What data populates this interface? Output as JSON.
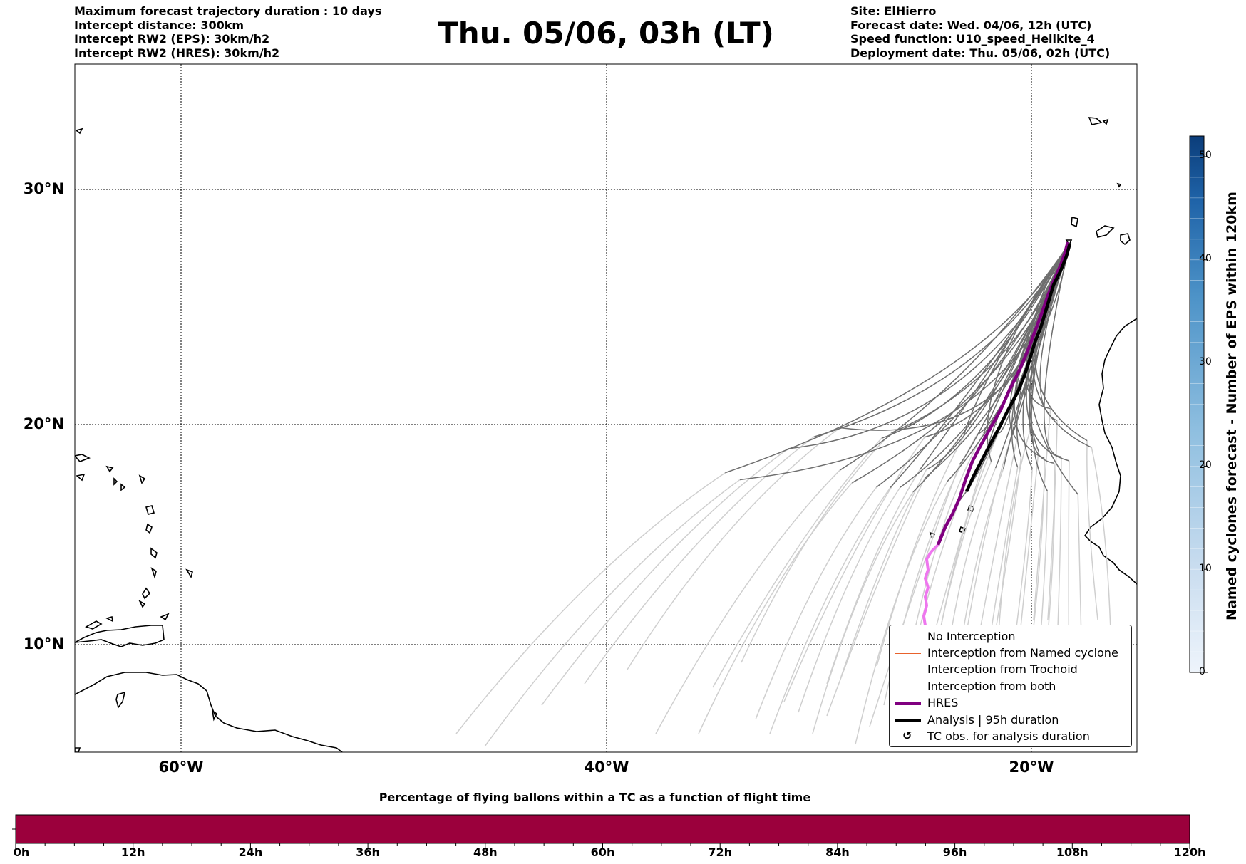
{
  "header_left": [
    "Maximum forecast trajectory duration : 10 days",
    "Intercept distance: 300km",
    "Intercept RW2 (EPS):  30km/h2",
    "Intercept RW2 (HRES): 30km/h2"
  ],
  "title": "Thu. 05/06, 03h (LT)",
  "header_right": [
    "Site: ElHierro",
    "Forecast date: Wed. 04/06, 12h (UTC)",
    "Speed function: U10_speed_Helikite_4",
    "Deployment date: Thu. 05/06, 02h (UTC)"
  ],
  "map": {
    "lat_labels": [
      "30°N",
      "20°N",
      "10°N"
    ],
    "lon_labels": [
      "60°W",
      "40°W",
      "20°W"
    ],
    "gridlines": true
  },
  "legend": {
    "placement": "lower-right",
    "items": [
      {
        "label": "No Interception",
        "color": "#808080",
        "style": "line-thin"
      },
      {
        "label": "Interception from Named cyclone",
        "color": "#e8622c",
        "style": "line-thin"
      },
      {
        "label": "Interception from Trochoid",
        "color": "#9a8a20",
        "style": "line-thin"
      },
      {
        "label": "Interception from both",
        "color": "#3a9a3a",
        "style": "line-thin"
      },
      {
        "label": "HRES",
        "color": "#800080",
        "style": "line-thick"
      },
      {
        "label": "Analysis | 95h duration",
        "color": "#000000",
        "style": "line-thick"
      },
      {
        "label": "TC obs. for analysis duration",
        "color": "#000000",
        "style": "glyph",
        "glyph": "↺"
      }
    ]
  },
  "colorbar": {
    "title": "Named cyclones forecast - Number of EPS within 120km",
    "ticks": [
      "0",
      "10",
      "20",
      "30",
      "40",
      "50"
    ],
    "range": [
      0,
      52
    ],
    "colormap": "Blues"
  },
  "flight_bar": {
    "title": "Percentage of flying ballons within a TC as a function of flight time",
    "ticks": [
      "0h",
      "12h",
      "24h",
      "36h",
      "48h",
      "60h",
      "72h",
      "84h",
      "96h",
      "108h",
      "120h"
    ],
    "color": "#9b003c"
  },
  "colors": {
    "eps_dark": "#6e6e6e",
    "eps_light": "#cfcfcf",
    "hres": "#800080",
    "hres_light": "#ee77ee",
    "analysis": "#000000"
  }
}
